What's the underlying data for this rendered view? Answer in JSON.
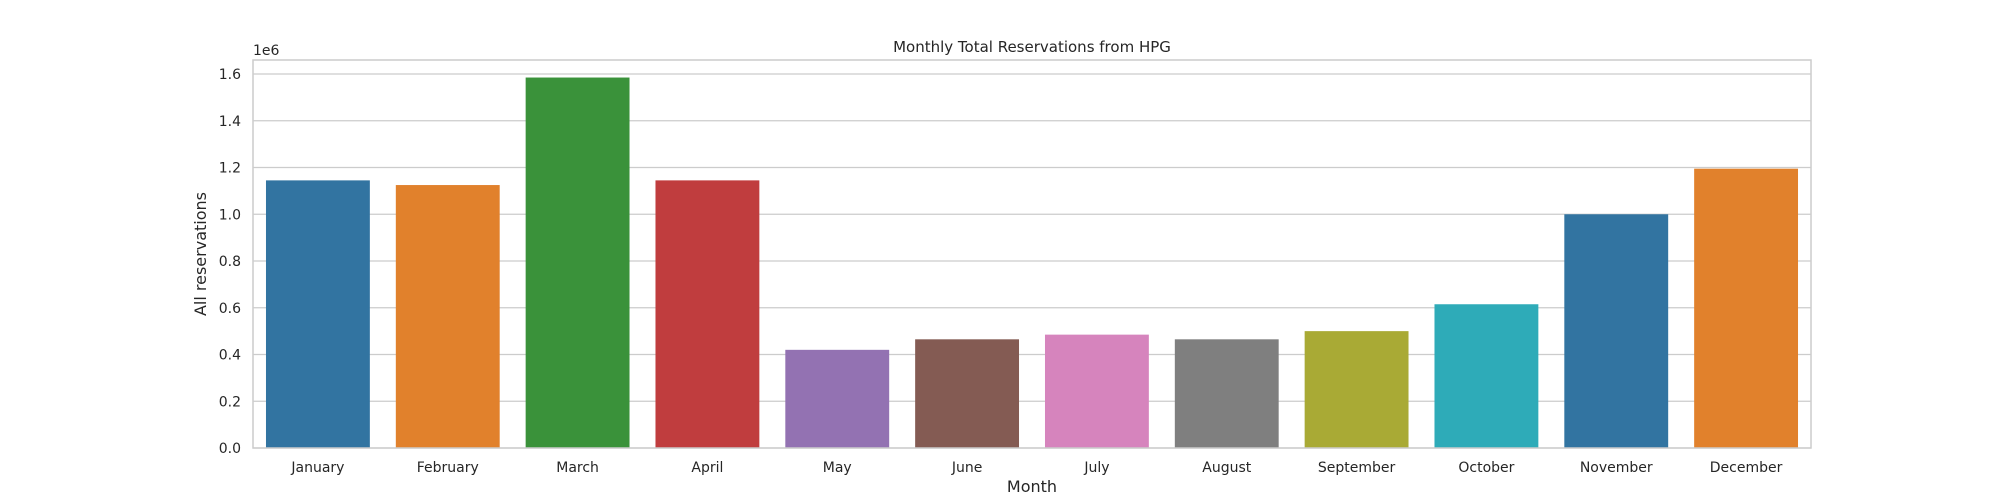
{
  "chart_data": {
    "type": "bar",
    "title": "Monthly Total Reservations from HPG",
    "xlabel": "Month",
    "ylabel": "All reservations",
    "y_offset_label": "1e6",
    "categories": [
      "January",
      "February",
      "March",
      "April",
      "May",
      "June",
      "July",
      "August",
      "September",
      "October",
      "November",
      "December"
    ],
    "values": [
      1145000,
      1125000,
      1585000,
      1145000,
      420000,
      465000,
      485000,
      465000,
      500000,
      615000,
      1000000,
      1195000
    ],
    "ylim": [
      0,
      1660000
    ],
    "yticks": [
      0,
      200000,
      400000,
      600000,
      800000,
      1000000,
      1200000,
      1400000,
      1600000
    ],
    "ytick_labels": [
      "0.0",
      "0.2",
      "0.4",
      "0.6",
      "0.8",
      "1.0",
      "1.2",
      "1.4",
      "1.6"
    ],
    "grid": true,
    "colors": [
      "#3274a1",
      "#e1812c",
      "#3a923a",
      "#c03d3e",
      "#9372b2",
      "#845b53",
      "#d684bd",
      "#7f7f7f",
      "#a9aa35",
      "#2eabb8",
      "#3274a1",
      "#e1812c"
    ]
  }
}
